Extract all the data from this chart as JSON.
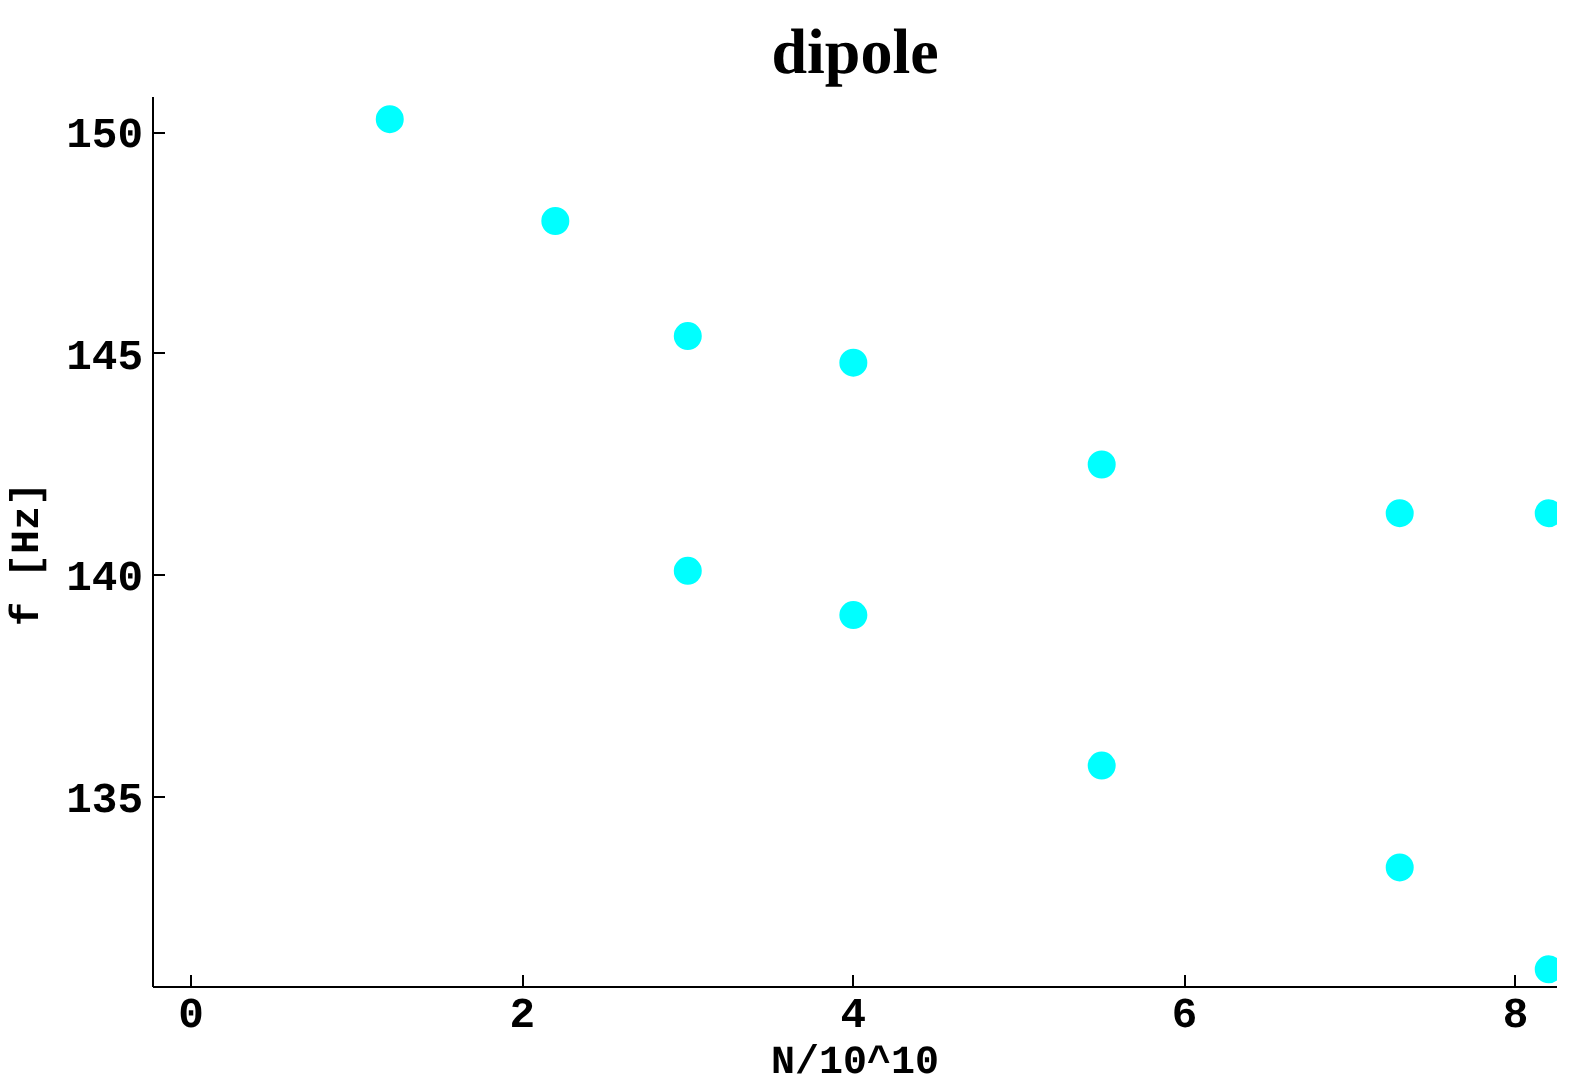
{
  "chart_data": {
    "type": "scatter",
    "title": "dipole",
    "xlabel": "N/10^10",
    "ylabel": "f  [Hz]",
    "x": [
      1.2,
      2.2,
      3.0,
      4.0,
      5.5,
      7.3,
      8.2,
      3.0,
      4.0,
      5.5,
      7.3,
      8.2
    ],
    "series": [
      {
        "color": "#00ffff",
        "values": [
          150.3,
          148.0,
          145.4,
          144.8,
          142.5,
          141.4,
          141.4,
          140.1,
          139.1,
          135.7,
          133.4,
          131.1
        ]
      }
    ],
    "xlim": [
      -0.23,
      8.25
    ],
    "ylim": [
      130.7,
      150.8
    ],
    "xticks": [
      0,
      2,
      4,
      6,
      8
    ],
    "yticks": [
      135,
      140,
      145,
      150
    ],
    "marker": "circle"
  }
}
